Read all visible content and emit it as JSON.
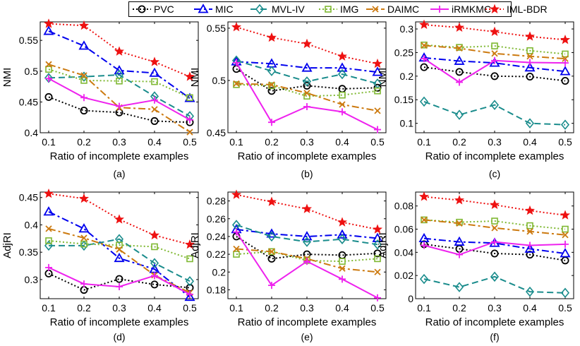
{
  "legend": [
    {
      "name": "PVC",
      "color": "#000000",
      "marker": "circle",
      "dash": "2,3"
    },
    {
      "name": "MIC",
      "color": "#0000ee",
      "marker": "triangle",
      "dash": "10,4,3,4"
    },
    {
      "name": "MVL-IV",
      "color": "#1a8c8c",
      "marker": "diamond",
      "dash": "9,5"
    },
    {
      "name": "IMG",
      "color": "#7fb832",
      "marker": "square",
      "dash": "2,3"
    },
    {
      "name": "DAIMC",
      "color": "#cc7a10",
      "marker": "x",
      "dash": "10,4,3,4"
    },
    {
      "name": "iRMKMC",
      "color": "#ee22ee",
      "marker": "plus",
      "dash": ""
    },
    {
      "name": "IML-BDR",
      "color": "#ee1111",
      "marker": "star",
      "dash": "2,3"
    }
  ],
  "chart_data": [
    {
      "type": "line",
      "caption": "(a)",
      "xlabel": "Ratio of incomplete examples",
      "ylabel": "NMI",
      "x": [
        0.1,
        0.2,
        0.3,
        0.4,
        0.5
      ],
      "xticks": [
        "0.1",
        "0.2",
        "0.3",
        "0.4",
        "0.5"
      ],
      "ylim": [
        0.4,
        0.58
      ],
      "yticks": [
        0.4,
        0.45,
        0.5,
        0.55
      ],
      "yticklabels": [
        "0.4",
        "0.45",
        "0.5",
        "0.55"
      ],
      "series": [
        {
          "name": "PVC",
          "values": [
            0.458,
            0.436,
            0.433,
            0.419,
            0.417
          ]
        },
        {
          "name": "MIC",
          "values": [
            0.565,
            0.541,
            0.501,
            0.497,
            0.456
          ]
        },
        {
          "name": "MVL-IV",
          "values": [
            0.489,
            0.491,
            0.494,
            0.459,
            0.427
          ]
        },
        {
          "name": "IMG",
          "values": [
            0.503,
            0.485,
            0.484,
            0.483,
            0.457
          ]
        },
        {
          "name": "DAIMC",
          "values": [
            0.511,
            0.493,
            0.441,
            0.438,
            0.401
          ]
        },
        {
          "name": "iRMKMC",
          "values": [
            0.488,
            0.457,
            0.443,
            0.453,
            0.421
          ]
        },
        {
          "name": "IML-BDR",
          "values": [
            0.577,
            0.574,
            0.532,
            0.515,
            0.491
          ]
        }
      ]
    },
    {
      "type": "line",
      "caption": "(b)",
      "xlabel": "Ratio of incomplete examples",
      "ylabel": "NMI",
      "x": [
        0.1,
        0.2,
        0.3,
        0.4,
        0.5
      ],
      "xticks": [
        "0.1",
        "0.2",
        "0.3",
        "0.4",
        "0.5"
      ],
      "ylim": [
        0.45,
        0.556
      ],
      "yticks": [
        0.45,
        0.5,
        0.55
      ],
      "yticklabels": [
        "0.45",
        "0.5",
        "0.55"
      ],
      "series": [
        {
          "name": "PVC",
          "values": [
            0.511,
            0.49,
            0.495,
            0.492,
            0.493
          ]
        },
        {
          "name": "MIC",
          "values": [
            0.518,
            0.516,
            0.512,
            0.512,
            0.508
          ]
        },
        {
          "name": "MVL-IV",
          "values": [
            0.519,
            0.509,
            0.499,
            0.506,
            0.497
          ]
        },
        {
          "name": "IMG",
          "values": [
            0.496,
            0.495,
            0.485,
            0.486,
            0.49
          ]
        },
        {
          "name": "DAIMC",
          "values": [
            0.497,
            0.496,
            0.488,
            0.477,
            0.471
          ]
        },
        {
          "name": "iRMKMC",
          "values": [
            0.517,
            0.46,
            0.475,
            0.47,
            0.453
          ]
        },
        {
          "name": "IML-BDR",
          "values": [
            0.551,
            0.541,
            0.535,
            0.523,
            0.516
          ]
        }
      ]
    },
    {
      "type": "line",
      "caption": "(c)",
      "xlabel": "Ratio of incomplete examples",
      "ylabel": "NMI",
      "x": [
        0.1,
        0.2,
        0.3,
        0.4,
        0.5
      ],
      "xticks": [
        "0.1",
        "0.2",
        "0.3",
        "0.4",
        "0.5"
      ],
      "ylim": [
        0.08,
        0.315
      ],
      "yticks": [
        0.1,
        0.15,
        0.2,
        0.25,
        0.3
      ],
      "yticklabels": [
        "0.1",
        "0.15",
        "0.2",
        "0.25",
        "0.3"
      ],
      "series": [
        {
          "name": "PVC",
          "values": [
            0.219,
            0.209,
            0.2,
            0.199,
            0.19
          ]
        },
        {
          "name": "MIC",
          "values": [
            0.239,
            0.232,
            0.228,
            0.218,
            0.21
          ]
        },
        {
          "name": "MVL-IV",
          "values": [
            0.146,
            0.118,
            0.139,
            0.1,
            0.097
          ]
        },
        {
          "name": "IMG",
          "values": [
            0.266,
            0.261,
            0.264,
            0.254,
            0.247
          ]
        },
        {
          "name": "DAIMC",
          "values": [
            0.265,
            0.259,
            0.248,
            0.242,
            0.237
          ]
        },
        {
          "name": "iRMKMC",
          "values": [
            0.237,
            0.187,
            0.233,
            0.229,
            0.228
          ]
        },
        {
          "name": "IML-BDR",
          "values": [
            0.309,
            0.303,
            0.294,
            0.284,
            0.277
          ]
        }
      ]
    },
    {
      "type": "line",
      "caption": "(d)",
      "xlabel": "Ratio of incomplete examples",
      "ylabel": "AdjRI",
      "x": [
        0.1,
        0.2,
        0.3,
        0.4,
        0.5
      ],
      "xticks": [
        "0.1",
        "0.2",
        "0.3",
        "0.4",
        "0.5"
      ],
      "ylim": [
        0.265,
        0.46
      ],
      "yticks": [
        0.3,
        0.35,
        0.4,
        0.45
      ],
      "yticklabels": [
        "0.3",
        "0.35",
        "0.4",
        "0.45"
      ],
      "series": [
        {
          "name": "PVC",
          "values": [
            0.311,
            0.281,
            0.301,
            0.291,
            0.285
          ]
        },
        {
          "name": "MIC",
          "values": [
            0.424,
            0.393,
            0.339,
            0.319,
            0.268
          ]
        },
        {
          "name": "MVL-IV",
          "values": [
            0.362,
            0.362,
            0.374,
            0.33,
            0.297
          ]
        },
        {
          "name": "IMG",
          "values": [
            0.371,
            0.365,
            0.363,
            0.36,
            0.338
          ]
        },
        {
          "name": "DAIMC",
          "values": [
            0.393,
            0.376,
            0.355,
            0.308,
            0.276
          ]
        },
        {
          "name": "iRMKMC",
          "values": [
            0.322,
            0.292,
            0.287,
            0.307,
            0.273
          ]
        },
        {
          "name": "IML-BDR",
          "values": [
            0.457,
            0.448,
            0.41,
            0.381,
            0.364
          ]
        }
      ]
    },
    {
      "type": "line",
      "caption": "(e)",
      "xlabel": "Ratio of incomplete examples",
      "ylabel": "AdjRI",
      "x": [
        0.1,
        0.2,
        0.3,
        0.4,
        0.5
      ],
      "xticks": [
        "0.1",
        "0.2",
        "0.3",
        "0.4",
        "0.5"
      ],
      "ylim": [
        0.17,
        0.29
      ],
      "yticks": [
        0.18,
        0.2,
        0.22,
        0.24,
        0.26,
        0.28
      ],
      "yticklabels": [
        "0.18",
        "0.2",
        "0.22",
        "0.24",
        "0.26",
        "0.28"
      ],
      "series": [
        {
          "name": "PVC",
          "values": [
            0.24,
            0.215,
            0.22,
            0.219,
            0.221
          ]
        },
        {
          "name": "MIC",
          "values": [
            0.248,
            0.243,
            0.24,
            0.242,
            0.238
          ]
        },
        {
          "name": "MVL-IV",
          "values": [
            0.253,
            0.24,
            0.234,
            0.237,
            0.231
          ]
        },
        {
          "name": "IMG",
          "values": [
            0.22,
            0.223,
            0.213,
            0.212,
            0.215
          ]
        },
        {
          "name": "DAIMC",
          "values": [
            0.226,
            0.223,
            0.215,
            0.204,
            0.2
          ]
        },
        {
          "name": "iRMKMC",
          "values": [
            0.245,
            0.185,
            0.212,
            0.192,
            0.171
          ]
        },
        {
          "name": "IML-BDR",
          "values": [
            0.287,
            0.279,
            0.271,
            0.256,
            0.248
          ]
        }
      ]
    },
    {
      "type": "line",
      "caption": "(f)",
      "xlabel": "Ratio of incomplete examples",
      "ylabel": "AdjRI",
      "x": [
        0.1,
        0.2,
        0.3,
        0.4,
        0.5
      ],
      "xticks": [
        "0.1",
        "0.2",
        "0.3",
        "0.4",
        "0.5"
      ],
      "ylim": [
        0,
        0.092
      ],
      "yticks": [
        0,
        0.02,
        0.04,
        0.06,
        0.08
      ],
      "yticklabels": [
        "0",
        "0.02",
        "0.04",
        "0.06",
        "0.08"
      ],
      "series": [
        {
          "name": "PVC",
          "values": [
            0.047,
            0.043,
            0.039,
            0.038,
            0.033
          ]
        },
        {
          "name": "MIC",
          "values": [
            0.052,
            0.049,
            0.048,
            0.043,
            0.039
          ]
        },
        {
          "name": "MVL-IV",
          "values": [
            0.017,
            0.01,
            0.019,
            0.006,
            0.005
          ]
        },
        {
          "name": "IMG",
          "values": [
            0.068,
            0.066,
            0.067,
            0.063,
            0.06
          ]
        },
        {
          "name": "DAIMC",
          "values": [
            0.068,
            0.065,
            0.061,
            0.058,
            0.055
          ]
        },
        {
          "name": "iRMKMC",
          "values": [
            0.046,
            0.038,
            0.049,
            0.046,
            0.047
          ]
        },
        {
          "name": "IML-BDR",
          "values": [
            0.088,
            0.085,
            0.081,
            0.076,
            0.072
          ]
        }
      ]
    }
  ]
}
